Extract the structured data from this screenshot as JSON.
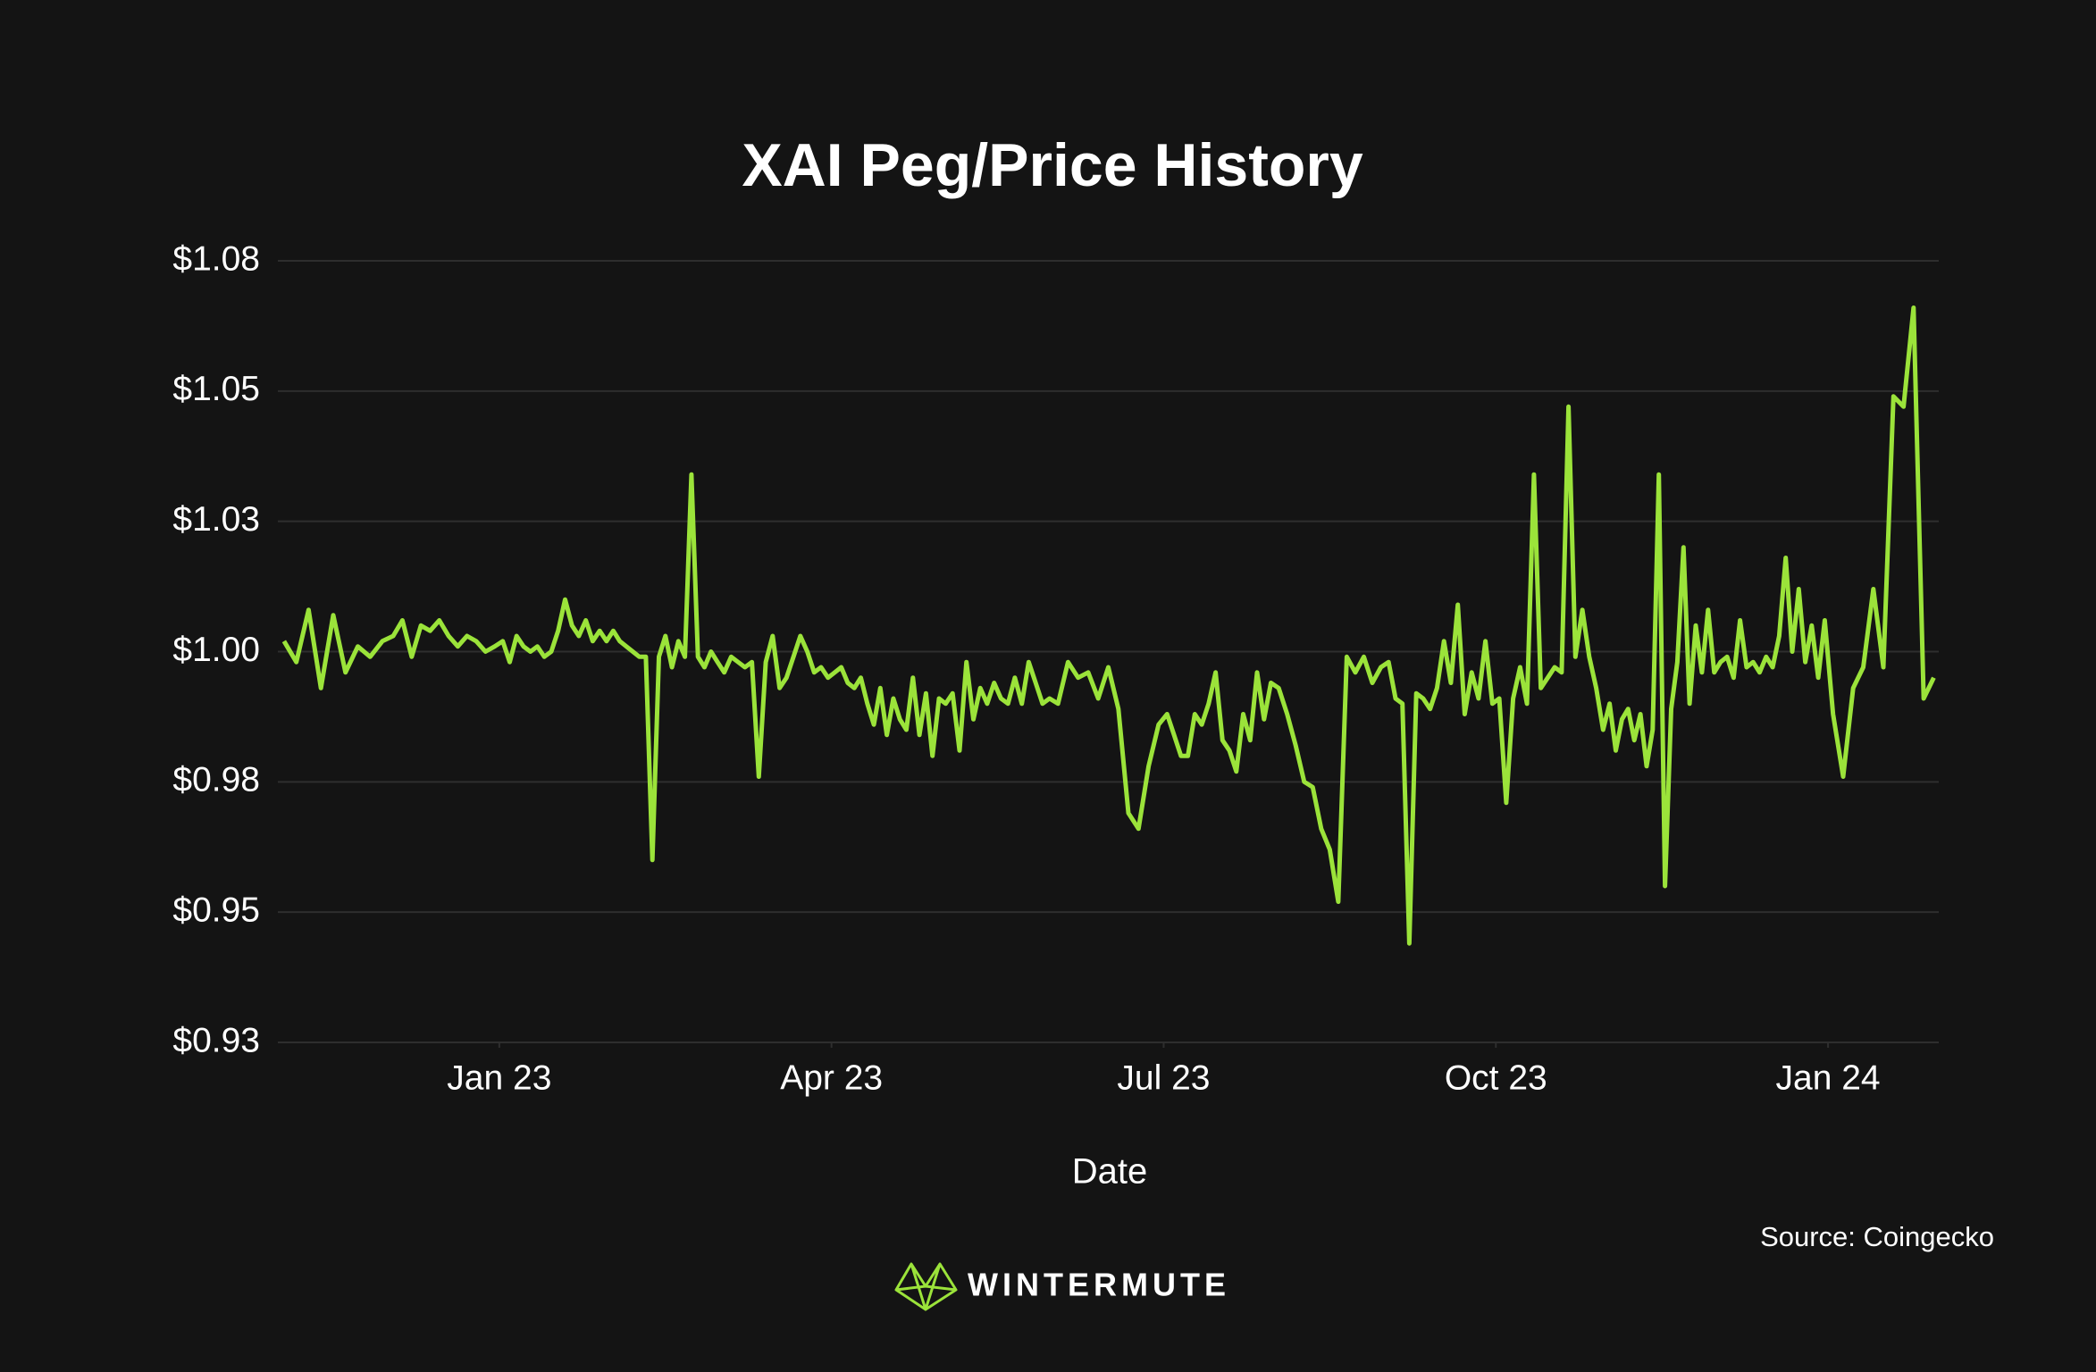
{
  "chart_data": {
    "type": "line",
    "title": "XAI Peg/Price History",
    "x_label": "Date",
    "source": "Source: Coingecko",
    "brand": "WINTERMUTE",
    "grid": true,
    "ylim": [
      0.925,
      1.075
    ],
    "yticks": [
      {
        "value": 0.925,
        "label": "$0.93"
      },
      {
        "value": 0.95,
        "label": "$0.95"
      },
      {
        "value": 0.975,
        "label": "$0.98"
      },
      {
        "value": 1.0,
        "label": "$1.00"
      },
      {
        "value": 1.025,
        "label": "$1.03"
      },
      {
        "value": 1.05,
        "label": "$1.05"
      },
      {
        "value": 1.075,
        "label": "$1.08"
      }
    ],
    "xlim": [
      "2022-11",
      "2024-01"
    ],
    "xticks": [
      {
        "value": "2023-01",
        "label": "Jan 23"
      },
      {
        "value": "2023-04",
        "label": "Apr 23"
      },
      {
        "value": "2023-07",
        "label": "Jul 23"
      },
      {
        "value": "2023-10",
        "label": "Oct 23"
      },
      {
        "value": "2024-01",
        "label": "Jan 24"
      }
    ],
    "series": [
      {
        "name": "XAI",
        "color": "#9be33a",
        "x": [
          "2022-11",
          "2022-11",
          "2022-11",
          "2022-11",
          "2022-11",
          "2022-11",
          "2022-11",
          "2022-11",
          "2022-11",
          "2022-12",
          "2022-12",
          "2022-12",
          "2022-12",
          "2022-12",
          "2022-12",
          "2022-12",
          "2022-12",
          "2022-12",
          "2022-12",
          "2022-12",
          "2022-12",
          "2023-01",
          "2023-01",
          "2023-01",
          "2023-01",
          "2023-01",
          "2023-01",
          "2023-01",
          "2023-01",
          "2023-01",
          "2023-01",
          "2023-01",
          "2023-01",
          "2023-01",
          "2023-01",
          "2023-01",
          "2023-01",
          "2023-02",
          "2023-02",
          "2023-02",
          "2023-02",
          "2023-02",
          "2023-02",
          "2023-02",
          "2023-02",
          "2023-02",
          "2023-02",
          "2023-02",
          "2023-02",
          "2023-02",
          "2023-02",
          "2023-02",
          "2023-02",
          "2023-02",
          "2023-03",
          "2023-03",
          "2023-03",
          "2023-03",
          "2023-03",
          "2023-03",
          "2023-03",
          "2023-03",
          "2023-03",
          "2023-03",
          "2023-03",
          "2023-03",
          "2023-03",
          "2023-03",
          "2023-03",
          "2023-03",
          "2023-04",
          "2023-04",
          "2023-04",
          "2023-04",
          "2023-04",
          "2023-04",
          "2023-04",
          "2023-04",
          "2023-04",
          "2023-04",
          "2023-04",
          "2023-04",
          "2023-04",
          "2023-04",
          "2023-04",
          "2023-04",
          "2023-04",
          "2023-05",
          "2023-05",
          "2023-05",
          "2023-05",
          "2023-05",
          "2023-05",
          "2023-05",
          "2023-05",
          "2023-05",
          "2023-05",
          "2023-05",
          "2023-05",
          "2023-05",
          "2023-05",
          "2023-05",
          "2023-05",
          "2023-06",
          "2023-06",
          "2023-06",
          "2023-06",
          "2023-06",
          "2023-06",
          "2023-06",
          "2023-06",
          "2023-06",
          "2023-06",
          "2023-06",
          "2023-07",
          "2023-07",
          "2023-07",
          "2023-07",
          "2023-07",
          "2023-07",
          "2023-07",
          "2023-07",
          "2023-07",
          "2023-07",
          "2023-07",
          "2023-07",
          "2023-07",
          "2023-07",
          "2023-07",
          "2023-07",
          "2023-08",
          "2023-08",
          "2023-08",
          "2023-08",
          "2023-08",
          "2023-08",
          "2023-08",
          "2023-08",
          "2023-08",
          "2023-08",
          "2023-08",
          "2023-08",
          "2023-08",
          "2023-09",
          "2023-09",
          "2023-09",
          "2023-09",
          "2023-09",
          "2023-09",
          "2023-09",
          "2023-09",
          "2023-09",
          "2023-09",
          "2023-09",
          "2023-09",
          "2023-09",
          "2023-09",
          "2023-09",
          "2023-09",
          "2023-10",
          "2023-10",
          "2023-10",
          "2023-10",
          "2023-10",
          "2023-10",
          "2023-10",
          "2023-10",
          "2023-10",
          "2023-10",
          "2023-10",
          "2023-10",
          "2023-10",
          "2023-10",
          "2023-10",
          "2023-10",
          "2023-11",
          "2023-11",
          "2023-11",
          "2023-11",
          "2023-11",
          "2023-11",
          "2023-11",
          "2023-11",
          "2023-11",
          "2023-11",
          "2023-11",
          "2023-11",
          "2023-11",
          "2023-11",
          "2023-11",
          "2023-11",
          "2023-11",
          "2023-11",
          "2023-12",
          "2023-12",
          "2023-12",
          "2023-12",
          "2023-12",
          "2023-12",
          "2023-12",
          "2023-12",
          "2023-12",
          "2023-12",
          "2023-12",
          "2023-12",
          "2023-12",
          "2023-12",
          "2023-12",
          "2023-12",
          "2023-12",
          "2024-01",
          "2024-01",
          "2024-01",
          "2024-01",
          "2024-01",
          "2024-01",
          "2024-01",
          "2024-01",
          "2024-01",
          "2024-01",
          "2024-01"
        ],
        "values": [
          1.002,
          0.998,
          1.008,
          0.993,
          1.007,
          0.996,
          1.001,
          0.999,
          1.002,
          1.003,
          1.006,
          0.999,
          1.005,
          1.004,
          1.006,
          1.003,
          1.001,
          1.003,
          1.002,
          1.0,
          1.001,
          1.002,
          0.998,
          1.003,
          1.001,
          1.0,
          1.001,
          0.999,
          1.0,
          1.004,
          1.01,
          1.005,
          1.003,
          1.006,
          1.002,
          1.004,
          1.002,
          1.004,
          1.002,
          1.001,
          1.0,
          0.999,
          0.999,
          0.96,
          0.999,
          1.003,
          0.997,
          1.002,
          0.999,
          1.034,
          0.999,
          0.997,
          1.0,
          0.998,
          0.996,
          0.999,
          0.998,
          0.997,
          0.998,
          0.976,
          0.998,
          1.003,
          0.993,
          0.995,
          0.999,
          1.003,
          1.0,
          0.996,
          0.997,
          0.995,
          0.996,
          0.997,
          0.994,
          0.993,
          0.995,
          0.99,
          0.986,
          0.993,
          0.984,
          0.991,
          0.987,
          0.985,
          0.995,
          0.984,
          0.992,
          0.98,
          0.991,
          0.99,
          0.992,
          0.981,
          0.998,
          0.987,
          0.993,
          0.99,
          0.994,
          0.991,
          0.99,
          0.995,
          0.99,
          0.998,
          0.994,
          0.99,
          0.991,
          0.99,
          0.998,
          0.995,
          0.996,
          0.991,
          0.997,
          0.989,
          0.969,
          0.966,
          0.978,
          0.986,
          0.988,
          0.984,
          0.98,
          0.98,
          0.988,
          0.986,
          0.99,
          0.996,
          0.983,
          0.981,
          0.977,
          0.988,
          0.983,
          0.996,
          0.987,
          0.994,
          0.993,
          0.988,
          0.982,
          0.975,
          0.974,
          0.966,
          0.962,
          0.952,
          0.999,
          0.996,
          0.999,
          0.994,
          0.997,
          0.998,
          0.991,
          0.99,
          0.944,
          0.992,
          0.991,
          0.989,
          0.993,
          1.002,
          0.994,
          1.009,
          0.988,
          0.996,
          0.991,
          1.002,
          0.99,
          0.991,
          0.971,
          0.991,
          0.997,
          0.99,
          1.034,
          0.993,
          0.995,
          0.997,
          0.996,
          1.047,
          0.999,
          1.008,
          0.999,
          0.993,
          0.985,
          0.99,
          0.981,
          0.987,
          0.989,
          0.983,
          0.988,
          0.978,
          0.985,
          1.034,
          0.955,
          0.989,
          0.998,
          1.02,
          0.99,
          1.005,
          0.996,
          1.008,
          0.996,
          0.998,
          0.999,
          0.995,
          1.006,
          0.997,
          0.998,
          0.996,
          0.999,
          0.997,
          1.003,
          1.018,
          1.0,
          1.012,
          0.998,
          1.005,
          0.995,
          1.006,
          0.988,
          0.976,
          0.993,
          0.997,
          1.012,
          0.997,
          1.049,
          1.047,
          1.066,
          0.991,
          0.995
        ]
      }
    ]
  }
}
